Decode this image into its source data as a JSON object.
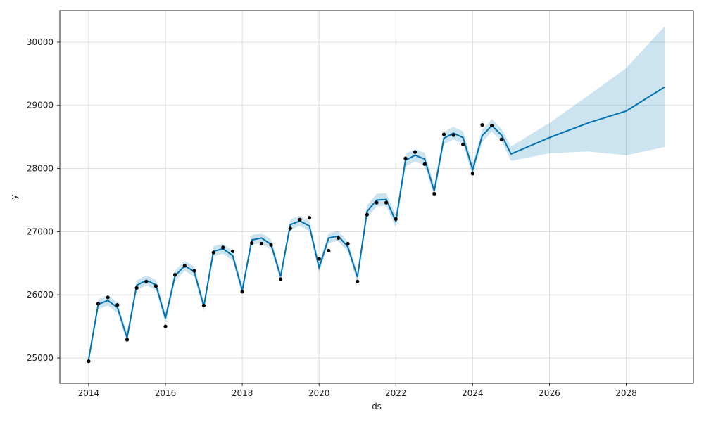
{
  "chart_data": {
    "type": "line",
    "xlabel": "ds",
    "ylabel": "y",
    "xlim": [
      2013.25,
      2029.75
    ],
    "ylim": [
      24600,
      30500
    ],
    "x_ticks": [
      2014,
      2016,
      2018,
      2020,
      2022,
      2024,
      2026,
      2028
    ],
    "y_ticks": [
      25000,
      26000,
      27000,
      28000,
      29000,
      30000
    ],
    "grid": true,
    "legend": "none",
    "colors": {
      "forecast": "#0072b2",
      "band": "#0072b2",
      "actual": "#000000",
      "grid": "#dddddd"
    },
    "series": [
      {
        "kind": "observed",
        "x": [
          2014.0,
          2014.25,
          2014.5,
          2014.75,
          2015.0,
          2015.25,
          2015.5,
          2015.75,
          2016.0,
          2016.25,
          2016.5,
          2016.75,
          2017.0,
          2017.25,
          2017.5,
          2017.75,
          2018.0,
          2018.25,
          2018.5,
          2018.75,
          2019.0,
          2019.25,
          2019.5,
          2019.75,
          2020.0,
          2020.25,
          2020.5,
          2020.75,
          2021.0,
          2021.25,
          2021.5,
          2021.75,
          2022.0,
          2022.25,
          2022.5,
          2022.75,
          2023.0,
          2023.25,
          2023.5,
          2023.75,
          2024.0,
          2024.25,
          2024.5,
          2024.75
        ],
        "y": [
          24950,
          25860,
          25960,
          25840,
          25290,
          26110,
          26210,
          26140,
          25500,
          26320,
          26460,
          26380,
          25830,
          26670,
          26750,
          26690,
          26050,
          26820,
          26810,
          26790,
          26250,
          27050,
          27190,
          27220,
          26570,
          26700,
          26900,
          26810,
          26210,
          27270,
          27460,
          27460,
          27200,
          28160,
          28260,
          28070,
          27600,
          28540,
          28530,
          28380,
          27920,
          28690,
          28680,
          28460
        ]
      },
      {
        "kind": "forecast",
        "x": [
          2014.0,
          2014.25,
          2014.5,
          2014.75,
          2015.0,
          2015.25,
          2015.5,
          2015.75,
          2016.0,
          2016.25,
          2016.5,
          2016.75,
          2017.0,
          2017.25,
          2017.5,
          2017.75,
          2018.0,
          2018.25,
          2018.5,
          2018.75,
          2019.0,
          2019.25,
          2019.5,
          2019.75,
          2020.0,
          2020.25,
          2020.5,
          2020.75,
          2021.0,
          2021.25,
          2021.5,
          2021.75,
          2022.0,
          2022.25,
          2022.5,
          2022.75,
          2023.0,
          2023.25,
          2023.5,
          2023.75,
          2024.0,
          2024.25,
          2024.5,
          2024.75,
          2025.0,
          2026.0,
          2027.0,
          2028.0,
          2029.0
        ],
        "y": [
          24980,
          25850,
          25910,
          25800,
          25320,
          26150,
          26230,
          26160,
          25630,
          26300,
          26460,
          26370,
          25820,
          26690,
          26730,
          26620,
          26070,
          26870,
          26900,
          26800,
          26290,
          27110,
          27170,
          27090,
          26430,
          26900,
          26930,
          26760,
          26280,
          27320,
          27500,
          27510,
          27160,
          28130,
          28210,
          28150,
          27640,
          28480,
          28560,
          28490,
          27980,
          28520,
          28680,
          28530,
          28230,
          28490,
          28720,
          28910,
          29290
        ],
        "upper": [
          25060,
          25930,
          25990,
          25880,
          25400,
          26230,
          26310,
          26240,
          25710,
          26380,
          26540,
          26450,
          25900,
          26770,
          26810,
          26700,
          26150,
          26950,
          26980,
          26880,
          26370,
          27190,
          27250,
          27170,
          26510,
          26980,
          27010,
          26840,
          26360,
          27420,
          27600,
          27610,
          27260,
          28230,
          28310,
          28250,
          27740,
          28580,
          28660,
          28590,
          28080,
          28620,
          28780,
          28630,
          28350,
          28720,
          29150,
          29590,
          30250
        ],
        "lower": [
          24900,
          25770,
          25830,
          25720,
          25240,
          26070,
          26150,
          26080,
          25550,
          26220,
          26380,
          26290,
          25740,
          26610,
          26650,
          26540,
          25990,
          26790,
          26820,
          26720,
          26210,
          27030,
          27090,
          27010,
          26350,
          26820,
          26850,
          26680,
          26200,
          27220,
          27400,
          27410,
          27060,
          28030,
          28110,
          28050,
          27540,
          28380,
          28460,
          28390,
          27880,
          28420,
          28580,
          28430,
          28120,
          28240,
          28270,
          28210,
          28340
        ]
      }
    ]
  }
}
